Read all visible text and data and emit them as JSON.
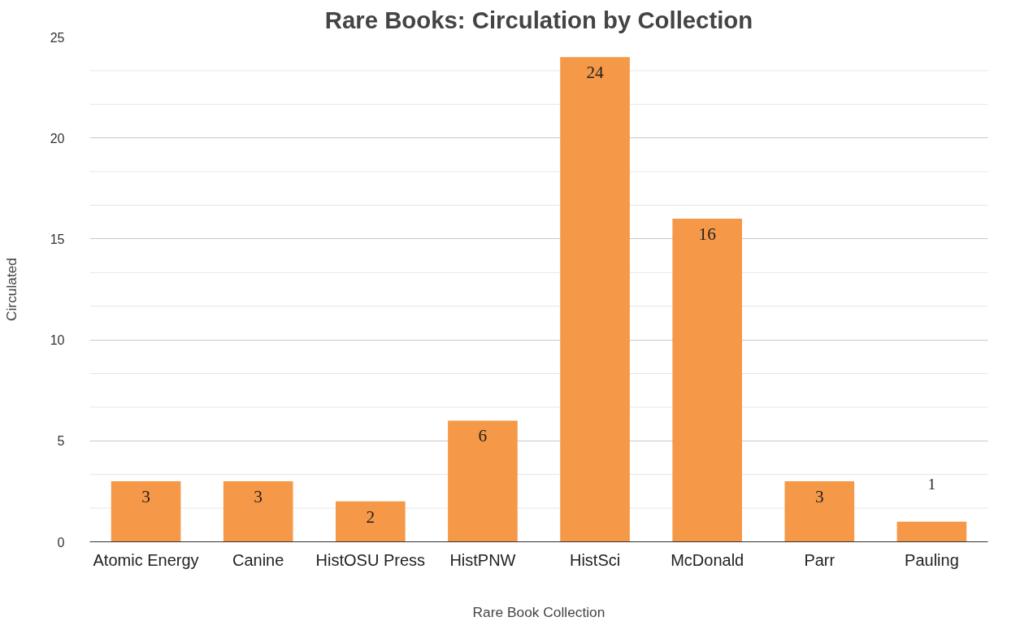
{
  "chart_data": {
    "type": "bar",
    "title": "Rare Books: Circulation by Collection",
    "xlabel": "Rare Book Collection",
    "ylabel": "Circulated",
    "categories": [
      "Atomic Energy",
      "Canine",
      "HistOSU Press",
      "HistPNW",
      "HistSci",
      "McDonald",
      "Parr",
      "Pauling"
    ],
    "values": [
      3,
      3,
      2,
      6,
      24,
      16,
      3,
      1
    ],
    "color": "#f59847",
    "ylim": [
      0,
      25
    ],
    "yticks": [
      0,
      5,
      10,
      15,
      20,
      25
    ],
    "grid": "y",
    "data_labels": true
  }
}
